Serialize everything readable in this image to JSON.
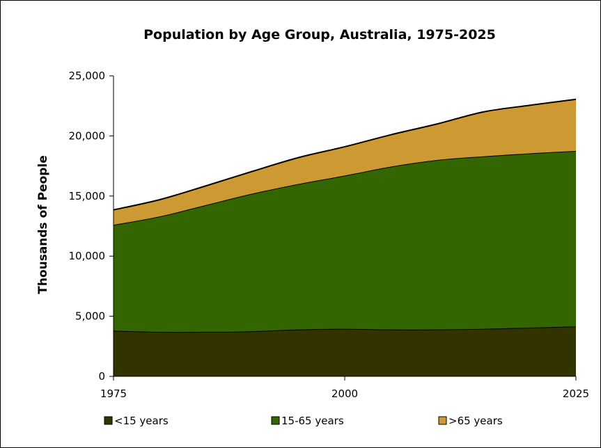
{
  "chart_data": {
    "type": "area",
    "stacked": true,
    "title": "Population by Age Group, Australia, 1975-2025",
    "xlabel": "",
    "ylabel": "Thousands of People",
    "x": [
      1975,
      1980,
      1985,
      1990,
      1995,
      2000,
      2005,
      2010,
      2015,
      2020,
      2025
    ],
    "x_ticks": [
      1975,
      2000,
      2025
    ],
    "y_ticks": [
      "0",
      "5,000",
      "10,000",
      "15,000",
      "20,000",
      "25,000"
    ],
    "ylim": [
      0,
      25000
    ],
    "grid": false,
    "legend_position": "bottom",
    "series": [
      {
        "name": "<15 years",
        "color": "#333300",
        "values": [
          3800,
          3700,
          3700,
          3750,
          3900,
          3950,
          3900,
          3900,
          3950,
          4050,
          4150
        ]
      },
      {
        "name": "15-65 years",
        "color": "#336600",
        "values": [
          8800,
          9600,
          10550,
          11450,
          12100,
          12750,
          13550,
          14100,
          14350,
          14500,
          14600
        ]
      },
      {
        "name": ">65 years",
        "color": "#CC9933",
        "values": [
          1250,
          1400,
          1600,
          1850,
          2200,
          2400,
          2650,
          3000,
          3700,
          4000,
          4300
        ]
      }
    ]
  }
}
